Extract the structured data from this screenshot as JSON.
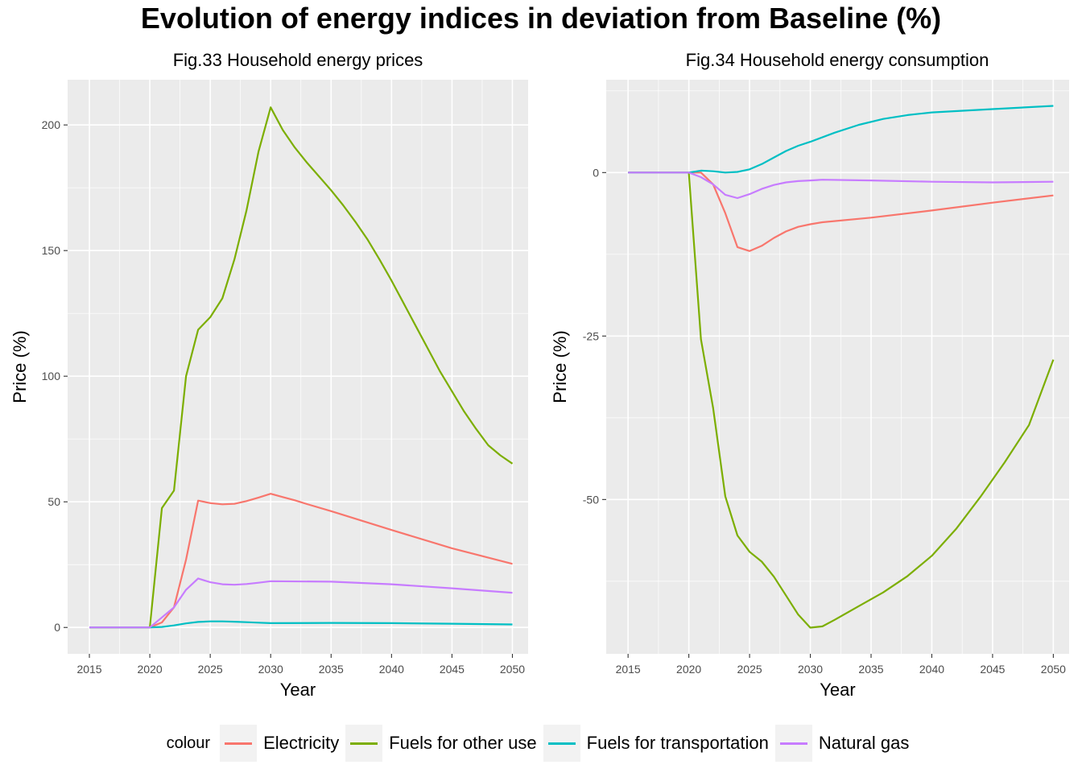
{
  "title": "Evolution of energy indices in deviation from Baseline (%)",
  "legend": {
    "title": "colour",
    "items": [
      {
        "label": "Electricity",
        "color": "#F8766D"
      },
      {
        "label": "Fuels for other use",
        "color": "#7CAE00"
      },
      {
        "label": "Fuels for transportation",
        "color": "#00BFC4"
      },
      {
        "label": "Natural gas",
        "color": "#C77CFF"
      }
    ]
  },
  "chart_data": [
    {
      "type": "line",
      "title": "Fig.33 Household energy prices",
      "xlabel": "Year",
      "ylabel": "Price (%)",
      "xlim": [
        2013.2,
        2051.3
      ],
      "ylim": [
        -10.5,
        218
      ],
      "x_ticks": [
        "2015",
        "2020",
        "2025",
        "2030",
        "2035",
        "2040",
        "2045",
        "2050"
      ],
      "x_tick_values": [
        2015,
        2020,
        2025,
        2030,
        2035,
        2040,
        2045,
        2050
      ],
      "y_ticks": [
        "0",
        "50",
        "100",
        "150",
        "200"
      ],
      "y_tick_values": [
        0,
        50,
        100,
        150,
        200
      ],
      "grid": true,
      "series": [
        {
          "name": "Electricity",
          "color": "#F8766D",
          "x": [
            2015,
            2020,
            2021,
            2022,
            2023,
            2024,
            2025,
            2026,
            2027,
            2028,
            2029,
            2030,
            2031,
            2032,
            2033,
            2035,
            2040,
            2045,
            2050
          ],
          "y": [
            0,
            0,
            2,
            8,
            27,
            50.5,
            49.5,
            49,
            49.2,
            50.3,
            51.7,
            53.2,
            51.9,
            50.6,
            49.1,
            46.3,
            38.8,
            31.5,
            25.3
          ]
        },
        {
          "name": "Fuels for other use",
          "color": "#7CAE00",
          "x": [
            2015,
            2020,
            2021,
            2022,
            2023,
            2024,
            2025,
            2026,
            2027,
            2028,
            2029,
            2030,
            2031,
            2032,
            2033,
            2034,
            2035,
            2036,
            2037,
            2038,
            2039,
            2040,
            2041,
            2042,
            2043,
            2044,
            2045,
            2046,
            2047,
            2048,
            2049,
            2050
          ],
          "y": [
            0,
            0,
            47.5,
            54.5,
            100,
            118.5,
            123.5,
            131,
            146.5,
            166,
            189.5,
            207,
            198,
            191,
            185,
            179.5,
            174,
            168,
            161.5,
            154.5,
            146.5,
            138,
            129,
            120,
            111,
            102,
            94,
            86,
            79,
            72.5,
            68.5,
            65.2
          ]
        },
        {
          "name": "Fuels for transportation",
          "color": "#00BFC4",
          "x": [
            2015,
            2020,
            2021,
            2022,
            2023,
            2024,
            2025,
            2026,
            2027,
            2028,
            2029,
            2030,
            2035,
            2040,
            2045,
            2050
          ],
          "y": [
            0,
            0,
            0.2,
            0.8,
            1.6,
            2.2,
            2.4,
            2.4,
            2.3,
            2.1,
            1.9,
            1.7,
            1.8,
            1.7,
            1.5,
            1.2
          ]
        },
        {
          "name": "Natural gas",
          "color": "#C77CFF",
          "x": [
            2015,
            2020,
            2021,
            2022,
            2023,
            2024,
            2025,
            2026,
            2027,
            2028,
            2029,
            2030,
            2035,
            2040,
            2045,
            2050
          ],
          "y": [
            0,
            0,
            4,
            8,
            15,
            19.5,
            18,
            17.2,
            17,
            17.3,
            17.8,
            18.4,
            18.2,
            17.2,
            15.6,
            13.8
          ]
        }
      ]
    },
    {
      "type": "line",
      "title": "Fig.34 Household energy consumption",
      "xlabel": "Year",
      "ylabel": "Price (%)",
      "xlim": [
        2013.2,
        2051.3
      ],
      "ylim": [
        -73.6,
        14.2
      ],
      "x_ticks": [
        "2015",
        "2020",
        "2025",
        "2030",
        "2035",
        "2040",
        "2045",
        "2050"
      ],
      "x_tick_values": [
        2015,
        2020,
        2025,
        2030,
        2035,
        2040,
        2045,
        2050
      ],
      "y_ticks": [
        "0",
        "-25",
        "-50"
      ],
      "y_tick_values": [
        0,
        -25,
        -50
      ],
      "grid": true,
      "series": [
        {
          "name": "Electricity",
          "color": "#F8766D",
          "x": [
            2015,
            2020,
            2021,
            2022,
            2023,
            2024,
            2025,
            2026,
            2027,
            2028,
            2029,
            2030,
            2031,
            2035,
            2040,
            2045,
            2050
          ],
          "y": [
            0,
            0,
            0,
            -1.8,
            -6.2,
            -11.4,
            -12,
            -11.2,
            -10,
            -9,
            -8.3,
            -7.9,
            -7.6,
            -6.9,
            -5.8,
            -4.6,
            -3.5
          ]
        },
        {
          "name": "Fuels for other use",
          "color": "#7CAE00",
          "x": [
            2015,
            2020,
            2021,
            2022,
            2023,
            2024,
            2025,
            2026,
            2027,
            2028,
            2029,
            2030,
            2031,
            2032,
            2034,
            2036,
            2038,
            2040,
            2042,
            2044,
            2046,
            2048,
            2050
          ],
          "y": [
            0,
            0,
            -25.5,
            -36,
            -49.5,
            -55.5,
            -58,
            -59.5,
            -61.8,
            -64.7,
            -67.6,
            -69.6,
            -69.4,
            -68.4,
            -66.3,
            -64.2,
            -61.7,
            -58.6,
            -54.5,
            -49.6,
            -44.3,
            -38.6,
            -28.6
          ]
        },
        {
          "name": "Fuels for transportation",
          "color": "#00BFC4",
          "x": [
            2015,
            2020,
            2021,
            2022,
            2023,
            2024,
            2025,
            2026,
            2027,
            2028,
            2029,
            2030,
            2032,
            2034,
            2036,
            2038,
            2040,
            2045,
            2050
          ],
          "y": [
            0,
            0,
            0.3,
            0.2,
            0,
            0.1,
            0.5,
            1.3,
            2.3,
            3.3,
            4.1,
            4.7,
            6.1,
            7.3,
            8.2,
            8.8,
            9.2,
            9.7,
            10.2
          ]
        },
        {
          "name": "Natural gas",
          "color": "#C77CFF",
          "x": [
            2015,
            2020,
            2021,
            2022,
            2023,
            2024,
            2025,
            2026,
            2027,
            2028,
            2029,
            2030,
            2031,
            2035,
            2040,
            2045,
            2050
          ],
          "y": [
            0,
            0,
            -0.7,
            -1.8,
            -3.4,
            -3.9,
            -3.3,
            -2.5,
            -1.9,
            -1.5,
            -1.3,
            -1.2,
            -1.1,
            -1.2,
            -1.4,
            -1.5,
            -1.4
          ]
        }
      ]
    }
  ]
}
